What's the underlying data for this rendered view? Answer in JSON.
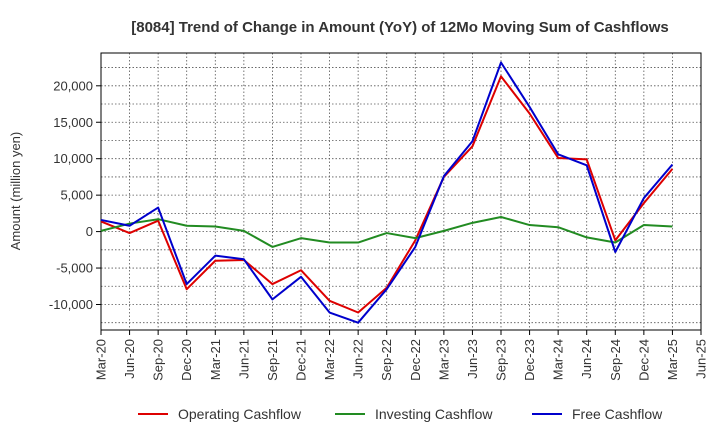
{
  "chart_data": {
    "type": "line",
    "title": "[8084]  Trend of Change in Amount (YoY) of 12Mo Moving Sum of Cashflows",
    "xlabel": "",
    "ylabel": "Amount (million yen)",
    "ylim": [
      -13500,
      24500
    ],
    "yticks": [
      -10000,
      -5000,
      0,
      5000,
      10000,
      15000,
      20000
    ],
    "ytick_labels": [
      "-10,000",
      "-5,000",
      "0",
      "5,000",
      "10,000",
      "15,000",
      "20,000"
    ],
    "categories": [
      "Mar-20",
      "Jun-20",
      "Sep-20",
      "Dec-20",
      "Mar-21",
      "Jun-21",
      "Sep-21",
      "Dec-21",
      "Mar-22",
      "Jun-22",
      "Sep-22",
      "Dec-22",
      "Mar-23",
      "Jun-23",
      "Sep-23",
      "Dec-23",
      "Mar-24",
      "Jun-24",
      "Sep-24",
      "Dec-24",
      "Mar-25",
      "Jun-25"
    ],
    "grid": true,
    "legend_position": "bottom",
    "series": [
      {
        "name": "Operating Cashflow",
        "color": "#dd0000",
        "values": [
          1400,
          -200,
          1500,
          -7900,
          -4000,
          -3900,
          -7200,
          -5300,
          -9500,
          -11100,
          -7700,
          -1200,
          7500,
          11700,
          21300,
          16200,
          10100,
          9900,
          -1200,
          3900,
          8600,
          null
        ]
      },
      {
        "name": "Investing Cashflow",
        "color": "#228b22",
        "values": [
          100,
          1100,
          1700,
          800,
          700,
          100,
          -2100,
          -900,
          -1500,
          -1500,
          -200,
          -900,
          100,
          1200,
          2000,
          900,
          600,
          -800,
          -1500,
          900,
          700,
          null
        ]
      },
      {
        "name": "Free Cashflow",
        "color": "#0000cc",
        "values": [
          1600,
          800,
          3300,
          -7200,
          -3300,
          -3800,
          -9300,
          -6200,
          -11100,
          -12500,
          -7900,
          -2100,
          7600,
          12400,
          23200,
          17100,
          10600,
          9100,
          -2800,
          4600,
          9200,
          null
        ]
      }
    ]
  }
}
